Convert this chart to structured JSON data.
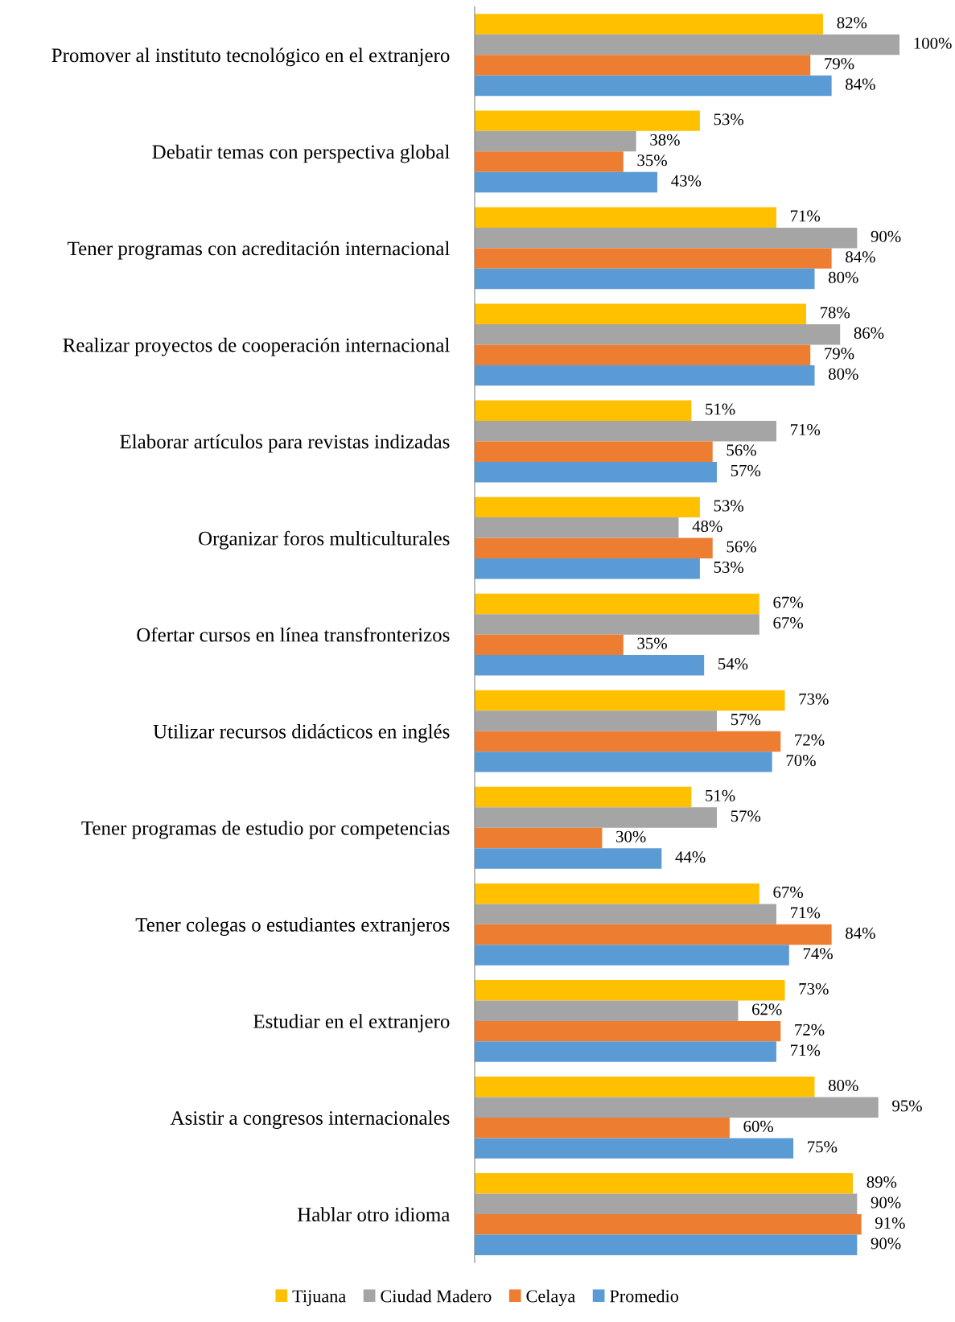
{
  "chart_data": {
    "type": "bar",
    "orientation": "horizontal",
    "legend": "bottom",
    "xlim": [
      0,
      100
    ],
    "tick_labels": "y",
    "categories": [
      "Promover al instituto tecnológico en el extranjero",
      "Debatir temas con perspectiva global",
      "Tener programas con acreditación internacional",
      "Realizar proyectos de cooperación internacional",
      "Elaborar artículos para revistas indizadas",
      "Organizar foros multiculturales",
      "Ofertar cursos en línea transfronterizos",
      "Utilizar recursos didácticos en inglés",
      "Tener programas de estudio por competencias",
      "Tener colegas o estudiantes extranjeros",
      "Estudiar en el extranjero",
      "Asistir a congresos internacionales",
      "Hablar otro idioma"
    ],
    "series": [
      {
        "name": "Tijuana",
        "color": "#ffc000",
        "values": [
          82,
          53,
          71,
          78,
          51,
          53,
          67,
          73,
          51,
          67,
          73,
          80,
          89
        ],
        "value_labels": [
          "82%",
          "53%",
          "71%",
          "78%",
          "51%",
          "53%",
          "67%",
          "73%",
          "51%",
          "67%",
          "73%",
          "80%",
          "89%"
        ]
      },
      {
        "name": "Ciudad Madero",
        "color": "#a5a5a5",
        "values": [
          100,
          38,
          90,
          86,
          71,
          48,
          67,
          57,
          57,
          71,
          62,
          95,
          90
        ],
        "value_labels": [
          "100%",
          "38%",
          "90%",
          "86%",
          "71%",
          "48%",
          "67%",
          "57%",
          "57%",
          "71%",
          "62%",
          "95%",
          "90%"
        ]
      },
      {
        "name": "Celaya",
        "color": "#ed7d31",
        "values": [
          79,
          35,
          84,
          79,
          56,
          56,
          35,
          72,
          30,
          84,
          72,
          60,
          91
        ],
        "value_labels": [
          "79%",
          "35%",
          "84%",
          "79%",
          "56%",
          "56%",
          "35%",
          "72%",
          "30%",
          "84%",
          "72%",
          "60%",
          "91%"
        ]
      },
      {
        "name": "Promedio",
        "color": "#5b9bd5",
        "values": [
          84,
          43,
          80,
          80,
          57,
          53,
          54,
          70,
          44,
          74,
          71,
          75,
          90
        ],
        "value_labels": [
          "84%",
          "43%",
          "80%",
          "80%",
          "57%",
          "53%",
          "54%",
          "70%",
          "44%",
          "74%",
          "71%",
          "75%",
          "90%"
        ]
      }
    ]
  }
}
